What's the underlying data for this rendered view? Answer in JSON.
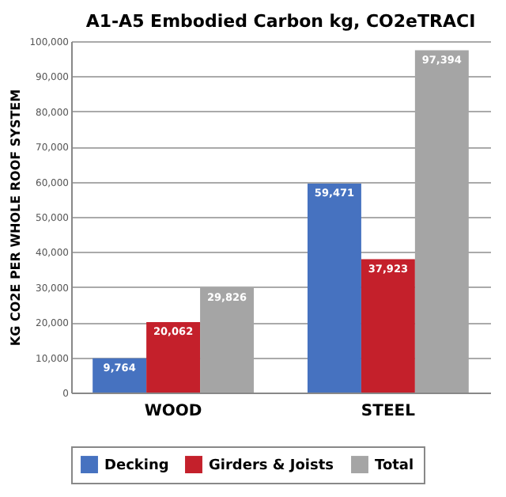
{
  "chart_data": {
    "type": "bar",
    "title": "A1-A5 Embodied Carbon kg, CO2eTRACI",
    "ylabel": "KG CO2E PER WHOLE ROOF SYSTEM",
    "categories": [
      "WOOD",
      "STEEL"
    ],
    "series": [
      {
        "name": "Decking",
        "color": "#4672c0",
        "values": [
          9764,
          59471
        ],
        "value_labels": [
          "9,764",
          "59,471"
        ]
      },
      {
        "name": "Girders & Joists",
        "color": "#c4202b",
        "values": [
          20062,
          37923
        ],
        "value_labels": [
          "20,062",
          "37,923"
        ]
      },
      {
        "name": "Total",
        "color": "#a5a5a5",
        "values": [
          29826,
          97394
        ],
        "value_labels": [
          "29,826",
          "97,394"
        ]
      }
    ],
    "ylim": [
      0,
      100000
    ],
    "yticks": [
      0,
      {
        "value": 10000,
        "label": "10,000"
      },
      {
        "value": 20000,
        "label": "20,000"
      },
      {
        "value": 30000,
        "label": "30,000"
      },
      {
        "value": 40000,
        "label": "40,000"
      },
      {
        "value": 50000,
        "label": "50,000"
      },
      {
        "value": 60000,
        "label": "60,000"
      },
      {
        "value": 70000,
        "label": "70,000"
      },
      {
        "value": 80000,
        "label": "80,000"
      },
      {
        "value": 90000,
        "label": "90,000"
      },
      {
        "value": 100000,
        "label": "100,000"
      }
    ],
    "grid": "y",
    "legend": "bottom"
  }
}
